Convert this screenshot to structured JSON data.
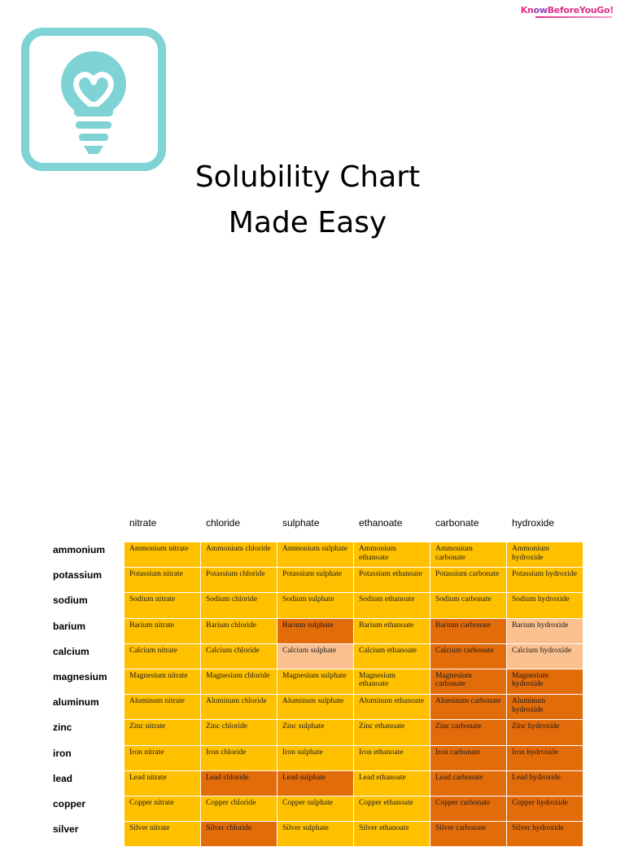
{
  "brand": {
    "part1": "Kn",
    "part2": "ow",
    "part3": "BeforeYouGo!"
  },
  "title": {
    "line1": "Solubility Chart",
    "line2": "Made Easy"
  },
  "colors": {
    "soluble": "#ffc000",
    "insoluble": "#e26b0a",
    "slightly_soluble": "#fac090",
    "icon": "#7fd3d4"
  },
  "icon_name": "lightbulb-heart-icon",
  "table": {
    "columns": [
      "nitrate",
      "chloride",
      "sulphate",
      "ethanoate",
      "carbonate",
      "hydroxide"
    ],
    "rows": [
      {
        "label": "ammonium",
        "cells": [
          {
            "text": "Ammonium nitrate",
            "status": "soluble"
          },
          {
            "text": "Ammonium chloride",
            "status": "soluble"
          },
          {
            "text": "Ammonium sulphate",
            "status": "soluble"
          },
          {
            "text": "Ammonium ethanoate",
            "status": "soluble"
          },
          {
            "text": "Ammonium carbonate",
            "status": "soluble"
          },
          {
            "text": "Ammonium hydroxide",
            "status": "soluble"
          }
        ]
      },
      {
        "label": "potassium",
        "cells": [
          {
            "text": "Potassium nitrate",
            "status": "soluble"
          },
          {
            "text": "Potassium chloride",
            "status": "soluble"
          },
          {
            "text": "Potassium sulphate",
            "status": "soluble"
          },
          {
            "text": "Potassium ethanoate",
            "status": "soluble"
          },
          {
            "text": "Potassium carbonate",
            "status": "soluble"
          },
          {
            "text": "Potassium hydroxide",
            "status": "soluble"
          }
        ]
      },
      {
        "label": "sodium",
        "cells": [
          {
            "text": "Sodium nitrate",
            "status": "soluble"
          },
          {
            "text": "Sodium chloride",
            "status": "soluble"
          },
          {
            "text": "Sodium sulphate",
            "status": "soluble"
          },
          {
            "text": "Sodium ethanoate",
            "status": "soluble"
          },
          {
            "text": "Sodium carbonate",
            "status": "soluble"
          },
          {
            "text": "Sodium hydroxide",
            "status": "soluble"
          }
        ]
      },
      {
        "label": "barium",
        "cells": [
          {
            "text": "Barium nitrate",
            "status": "soluble"
          },
          {
            "text": "Barium chloride",
            "status": "soluble"
          },
          {
            "text": "Barium sulphate",
            "status": "insoluble"
          },
          {
            "text": "Barium ethanoate",
            "status": "soluble"
          },
          {
            "text": "Barium  carbonate",
            "status": "insoluble"
          },
          {
            "text": "Barium hydroxide",
            "status": "slight"
          }
        ]
      },
      {
        "label": "calcium",
        "cells": [
          {
            "text": "Calcium nitrate",
            "status": "soluble"
          },
          {
            "text": "Calcium chloride",
            "status": "soluble"
          },
          {
            "text": "Calcium sulphate",
            "status": "slight"
          },
          {
            "text": "Calcium ethanoate",
            "status": "soluble"
          },
          {
            "text": "Calcium carbonate",
            "status": "insoluble"
          },
          {
            "text": "Calcium hydroxide",
            "status": "slight"
          }
        ]
      },
      {
        "label": "magnesium",
        "cells": [
          {
            "text": "Magnesium nitrate",
            "status": "soluble"
          },
          {
            "text": "Magnesium chloride",
            "status": "soluble"
          },
          {
            "text": "Magnesium sulphate",
            "status": "soluble"
          },
          {
            "text": "Magnesium ethanoate",
            "status": "soluble"
          },
          {
            "text": "Magnesium carbonate",
            "status": "insoluble"
          },
          {
            "text": "Magnesium hydroxide",
            "status": "insoluble"
          }
        ]
      },
      {
        "label": "aluminum",
        "cells": [
          {
            "text": "Aluminum nitrate",
            "status": "soluble"
          },
          {
            "text": "Aluminum chloride",
            "status": "soluble"
          },
          {
            "text": "Aluminum sulphate",
            "status": "soluble"
          },
          {
            "text": "Aluminum ethanoate",
            "status": "soluble"
          },
          {
            "text": "Aluminum carbonate",
            "status": "insoluble"
          },
          {
            "text": "Aluminum hydroxide",
            "status": "insoluble"
          }
        ]
      },
      {
        "label": "zinc",
        "cells": [
          {
            "text": "Zinc nitrate",
            "status": "soluble"
          },
          {
            "text": "Zinc chloride",
            "status": "soluble"
          },
          {
            "text": "Zinc sulphate",
            "status": "soluble"
          },
          {
            "text": "Zinc ethanoate",
            "status": "soluble"
          },
          {
            "text": "Zinc carbonate",
            "status": "insoluble"
          },
          {
            "text": "Zinc hydroxide",
            "status": "insoluble"
          }
        ]
      },
      {
        "label": "iron",
        "cells": [
          {
            "text": "Iron nitrate",
            "status": "soluble"
          },
          {
            "text": "Iron chloride",
            "status": "soluble"
          },
          {
            "text": "Iron sulphate",
            "status": "soluble"
          },
          {
            "text": "Iron ethanoate",
            "status": "soluble"
          },
          {
            "text": "Iron carbonate",
            "status": "insoluble"
          },
          {
            "text": "Iron hydroxide",
            "status": "insoluble"
          }
        ]
      },
      {
        "label": "lead",
        "cells": [
          {
            "text": "Lead nitrate",
            "status": "soluble"
          },
          {
            "text": "Lead chloride",
            "status": "insoluble"
          },
          {
            "text": "Lead sulphate",
            "status": "insoluble"
          },
          {
            "text": "Lead ethanoate",
            "status": "soluble"
          },
          {
            "text": "Lead carbonate",
            "status": "insoluble"
          },
          {
            "text": "Lead hydroxide",
            "status": "insoluble"
          }
        ]
      },
      {
        "label": "copper",
        "cells": [
          {
            "text": "Copper nitrate",
            "status": "soluble"
          },
          {
            "text": "Copper chloride",
            "status": "soluble"
          },
          {
            "text": "Copper sulphate",
            "status": "soluble"
          },
          {
            "text": "Copper ethanoate",
            "status": "soluble"
          },
          {
            "text": "Copper carbonate",
            "status": "insoluble"
          },
          {
            "text": "Copper hydroxide",
            "status": "insoluble"
          }
        ]
      },
      {
        "label": "silver",
        "cells": [
          {
            "text": "Silver nitrate",
            "status": "soluble"
          },
          {
            "text": "Silver chloride",
            "status": "insoluble"
          },
          {
            "text": "Silver sulphate",
            "status": "soluble"
          },
          {
            "text": "Silver ethanoate",
            "status": "soluble"
          },
          {
            "text": "Silver carbonate",
            "status": "insoluble"
          },
          {
            "text": "Silver hydroxide",
            "status": "insoluble"
          }
        ]
      }
    ]
  }
}
